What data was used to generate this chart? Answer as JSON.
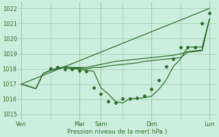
{
  "bg_color": "#cceedd",
  "grid_color": "#99ccaa",
  "line_color": "#2d6e2d",
  "marker_color": "#2d6e2d",
  "xlabel": "Pression niveau de la mer( hPa )",
  "yticks": [
    1015,
    1016,
    1017,
    1018,
    1019,
    1020,
    1021,
    1022
  ],
  "ylim": [
    1014.6,
    1022.4
  ],
  "xtick_labels": [
    "Ven",
    "",
    "Mar",
    "Sam",
    "",
    "Dim",
    "",
    "Lun"
  ],
  "xtick_positions": [
    0,
    4,
    8,
    11,
    14,
    18,
    22,
    26
  ],
  "vline_positions": [
    0,
    8,
    11,
    18,
    26
  ],
  "xlim": [
    -0.5,
    27.0
  ],
  "series1_x": [
    0,
    26
  ],
  "series1_y": [
    1017.0,
    1022.0
  ],
  "series2_x": [
    0,
    2,
    3,
    4,
    5,
    6,
    7,
    8,
    9,
    10,
    11,
    12,
    13,
    14,
    15,
    16,
    17,
    18,
    19,
    20,
    21,
    22,
    23,
    24,
    25,
    26
  ],
  "series2_y": [
    1017.0,
    1016.7,
    1017.7,
    1017.9,
    1018.05,
    1018.15,
    1018.1,
    1018.1,
    1018.1,
    1018.2,
    1018.3,
    1018.4,
    1018.5,
    1018.55,
    1018.6,
    1018.65,
    1018.7,
    1018.75,
    1018.8,
    1018.85,
    1018.9,
    1019.0,
    1019.15,
    1019.2,
    1019.25,
    1021.3
  ],
  "series3_x": [
    0,
    2,
    3,
    4,
    5,
    6,
    7,
    8,
    9,
    10,
    11,
    12,
    13,
    14,
    15,
    16,
    17,
    18,
    19,
    20,
    21,
    22,
    23,
    24,
    25,
    26
  ],
  "series3_y": [
    1017.0,
    1016.7,
    1017.7,
    1017.9,
    1018.0,
    1018.1,
    1018.05,
    1018.05,
    1018.0,
    1018.1,
    1018.1,
    1018.2,
    1018.25,
    1018.3,
    1018.35,
    1018.4,
    1018.5,
    1018.55,
    1018.6,
    1018.65,
    1018.7,
    1018.75,
    1019.1,
    1019.15,
    1019.2,
    1021.3
  ],
  "series4_x": [
    0,
    2,
    3,
    4,
    5,
    6,
    7,
    8,
    9,
    10,
    11,
    12,
    13,
    14,
    15,
    16,
    17,
    18,
    19,
    20,
    21,
    22,
    23,
    24,
    25,
    26
  ],
  "series4_y": [
    1017.0,
    1016.7,
    1017.7,
    1017.9,
    1018.05,
    1018.1,
    1018.0,
    1018.0,
    1017.9,
    1017.85,
    1016.75,
    1016.35,
    1015.85,
    1015.75,
    1016.05,
    1016.05,
    1016.1,
    1016.2,
    1016.65,
    1017.25,
    1018.15,
    1018.65,
    1019.45,
    1019.45,
    1019.45,
    1021.3
  ],
  "marker_x": [
    4,
    5,
    6,
    7,
    8,
    9,
    10,
    11,
    12,
    13,
    14,
    15,
    16,
    17,
    18,
    19,
    20,
    21,
    22,
    23,
    24,
    25,
    26
  ],
  "marker_y": [
    1018.05,
    1018.1,
    1018.0,
    1018.0,
    1017.9,
    1017.85,
    1016.75,
    1016.35,
    1015.85,
    1015.75,
    1016.05,
    1016.05,
    1016.1,
    1016.2,
    1016.65,
    1017.25,
    1018.15,
    1018.65,
    1019.45,
    1019.45,
    1019.45,
    1021.0,
    1021.7
  ]
}
